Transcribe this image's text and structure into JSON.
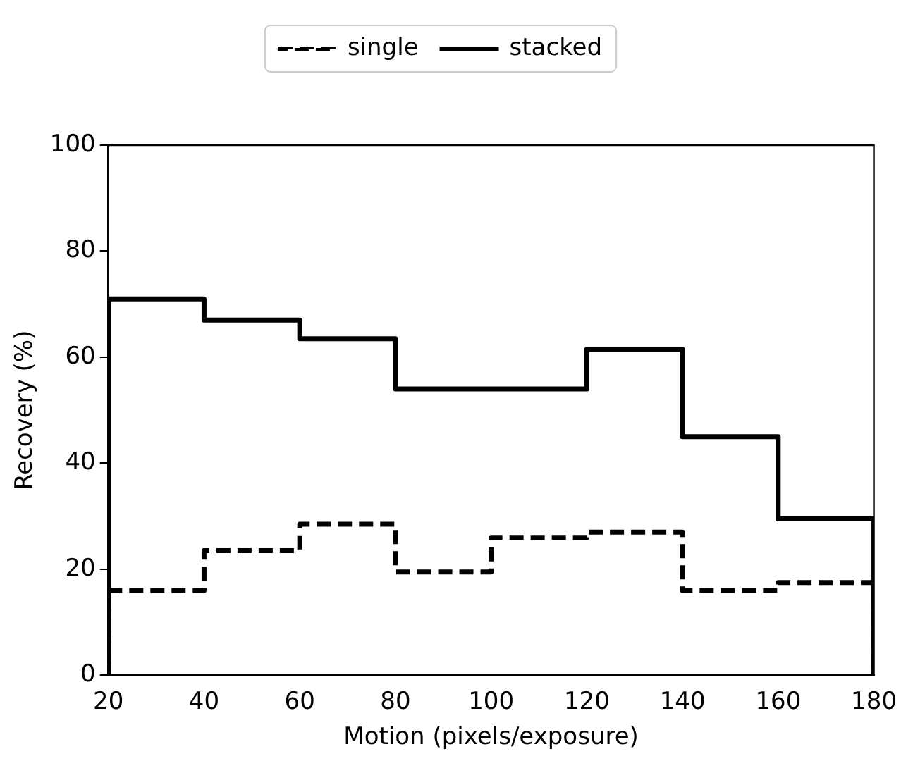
{
  "chart_data": {
    "type": "histogram",
    "xlabel": "Motion (pixels/exposure)",
    "ylabel": "Recovery (%)",
    "bins": [
      20,
      40,
      60,
      80,
      100,
      120,
      140,
      160,
      180
    ],
    "series": [
      {
        "name": "single",
        "color": "#000000",
        "line_style": "dashed",
        "values": [
          16,
          23.5,
          28.5,
          19.5,
          26,
          27,
          16,
          17.5
        ]
      },
      {
        "name": "stacked",
        "color": "#000000",
        "line_style": "solid",
        "values": [
          71,
          67,
          63.5,
          54,
          54,
          61.5,
          45,
          29.5
        ]
      }
    ],
    "xlim": [
      20,
      180
    ],
    "xticks": [
      20,
      40,
      60,
      80,
      100,
      120,
      140,
      160,
      180
    ],
    "ylim": [
      0,
      100
    ],
    "yticks": [
      0,
      20,
      40,
      60,
      80,
      100
    ],
    "grid": false,
    "legend": "top"
  }
}
